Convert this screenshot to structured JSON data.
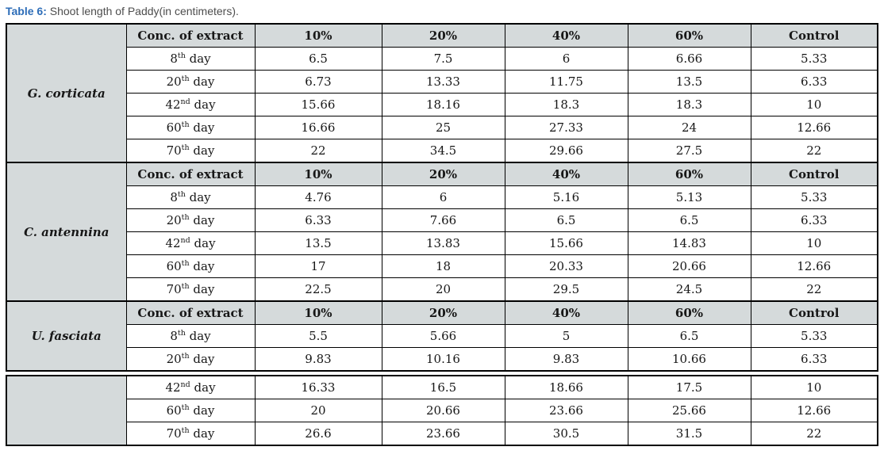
{
  "title": {
    "prefix": "Table 6:",
    "text": " Shoot length of Paddy(in centimeters)."
  },
  "colors": {
    "title_blue": "#2d6db8",
    "caption_gray": "#4d4d4d",
    "cell_gray": "#d5dadb",
    "border_black": "#000000"
  },
  "header": {
    "col0": "Conc. of extract",
    "cols": [
      "10%",
      "20%",
      "40%",
      "60%",
      "Control"
    ]
  },
  "blocks": [
    {
      "species": "G. corticata",
      "show_header": true,
      "rows": [
        {
          "day": {
            "num": "8",
            "sup": "th",
            "word": " day"
          },
          "values": [
            "6.5",
            "7.5",
            "6",
            "6.66",
            "5.33"
          ]
        },
        {
          "day": {
            "num": "20",
            "sup": "th",
            "word": " day"
          },
          "values": [
            "6.73",
            "13.33",
            "11.75",
            "13.5",
            "6.33"
          ]
        },
        {
          "day": {
            "num": "42",
            "sup": "nd",
            "word": " day"
          },
          "values": [
            "15.66",
            "18.16",
            "18.3",
            "18.3",
            "10"
          ]
        },
        {
          "day": {
            "num": "60",
            "sup": "th",
            "word": " day"
          },
          "values": [
            "16.66",
            "25",
            "27.33",
            "24",
            "12.66"
          ]
        },
        {
          "day": {
            "num": "70",
            "sup": "th",
            "word": " day"
          },
          "values": [
            "22",
            "34.5",
            "29.66",
            "27.5",
            "22"
          ]
        }
      ]
    },
    {
      "species": "C. antennina",
      "show_header": true,
      "rows": [
        {
          "day": {
            "num": "8",
            "sup": "th",
            "word": " day"
          },
          "values": [
            "4.76",
            "6",
            "5.16",
            "5.13",
            "5.33"
          ]
        },
        {
          "day": {
            "num": "20",
            "sup": "th",
            "word": " day"
          },
          "values": [
            "6.33",
            "7.66",
            "6.5",
            "6.5",
            "6.33"
          ]
        },
        {
          "day": {
            "num": "42",
            "sup": "nd",
            "word": " day"
          },
          "values": [
            "13.5",
            "13.83",
            "15.66",
            "14.83",
            "10"
          ]
        },
        {
          "day": {
            "num": "60",
            "sup": "th",
            "word": " day"
          },
          "values": [
            "17",
            "18",
            "20.33",
            "20.66",
            "12.66"
          ]
        },
        {
          "day": {
            "num": "70",
            "sup": "th",
            "word": " day"
          },
          "values": [
            "22.5",
            "20",
            "29.5",
            "24.5",
            "22"
          ]
        }
      ]
    },
    {
      "species": "U. fasciata",
      "show_header": true,
      "rows": [
        {
          "day": {
            "num": "8",
            "sup": "th",
            "word": " day"
          },
          "values": [
            "5.5",
            "5.66",
            "5",
            "6.5",
            "5.33"
          ]
        },
        {
          "day": {
            "num": "20",
            "sup": "th",
            "word": " day"
          },
          "values": [
            "9.83",
            "10.16",
            "9.83",
            "10.66",
            "6.33"
          ]
        }
      ]
    },
    {
      "species": "",
      "show_header": false,
      "rows": [
        {
          "day": {
            "num": "42",
            "sup": "nd",
            "word": " day"
          },
          "values": [
            "16.33",
            "16.5",
            "18.66",
            "17.5",
            "10"
          ]
        },
        {
          "day": {
            "num": "60",
            "sup": "th",
            "word": " day"
          },
          "values": [
            "20",
            "20.66",
            "23.66",
            "25.66",
            "12.66"
          ]
        },
        {
          "day": {
            "num": "70",
            "sup": "th",
            "word": " day"
          },
          "values": [
            "26.6",
            "23.66",
            "30.5",
            "31.5",
            "22"
          ]
        }
      ]
    }
  ]
}
